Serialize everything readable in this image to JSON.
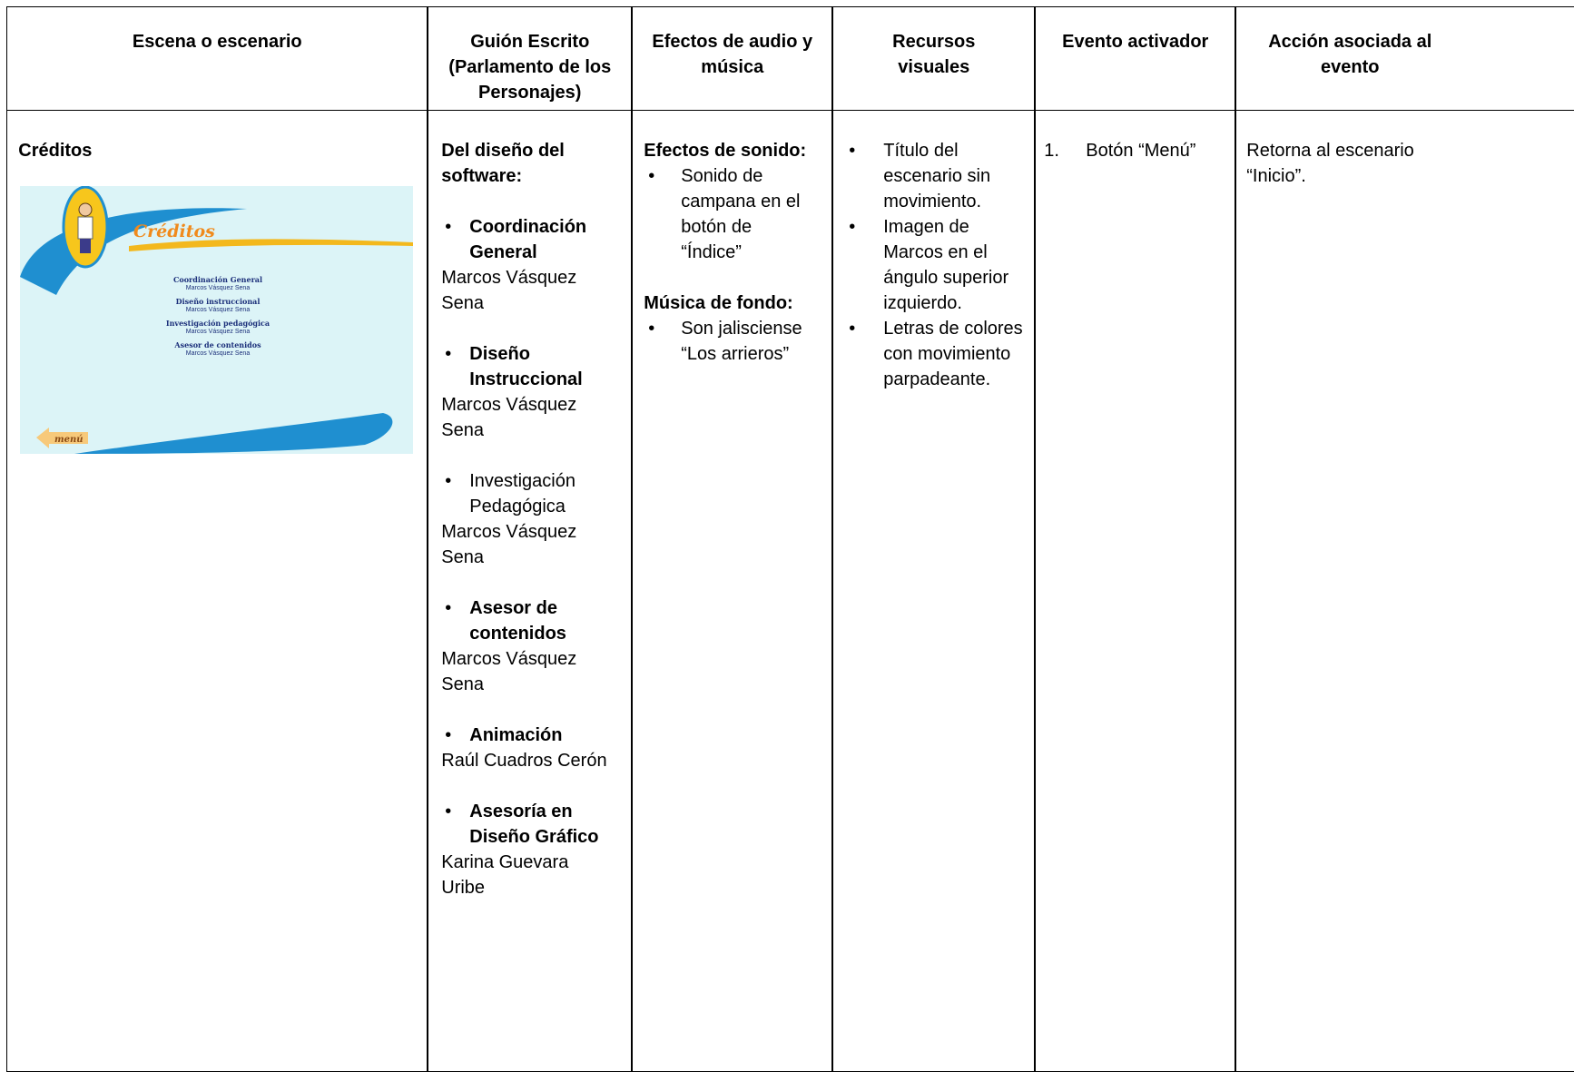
{
  "header": {
    "columns": [
      "Escena o escenario",
      "Guión Escrito (Parlamento de los Personajes)",
      "Efectos de audio y música",
      "Recursos visuales",
      "Evento activador",
      "Acción asociada al evento"
    ]
  },
  "row": {
    "scene": {
      "title": "Créditos",
      "thumbnail": {
        "title": "Créditos",
        "entries": [
          {
            "role": "Coordinación General",
            "name": "Marcos Vásquez Sena"
          },
          {
            "role": "Diseño instruccional",
            "name": "Marcos Vásquez Sena"
          },
          {
            "role": "Investigación pedagógica",
            "name": "Marcos Vásquez Sena"
          },
          {
            "role": "Asesor de contenidos",
            "name": "Marcos Vásquez Sena"
          }
        ],
        "button": "menú"
      }
    },
    "script": {
      "title": "Del diseño del software:",
      "items": [
        {
          "role": "Coordinación General",
          "bold": true,
          "name": "Marcos Vásquez Sena"
        },
        {
          "role": "Diseño Instruccional",
          "bold": true,
          "name": "Marcos Vásquez Sena"
        },
        {
          "role": "Investigación Pedagógica",
          "bold": false,
          "name": "Marcos Vásquez Sena"
        },
        {
          "role": "Asesor de contenidos",
          "bold": true,
          "name": "Marcos Vásquez Sena"
        },
        {
          "role": "Animación",
          "bold": true,
          "name": "Raúl Cuadros Cerón"
        },
        {
          "role": "Asesoría en Diseño Gráfico",
          "bold": true,
          "name": "Karina Guevara Uribe"
        }
      ]
    },
    "audio": {
      "sections": [
        {
          "title": "Efectos de sonido:",
          "items": [
            "Sonido de campana en el botón de “Índice”"
          ]
        },
        {
          "title": "Música de fondo:",
          "items": [
            "Son jalisciense “Los arrieros”"
          ]
        }
      ]
    },
    "visual": {
      "items": [
        "Título del escenario sin movimiento.",
        "Imagen de Marcos en el ángulo superior izquierdo.",
        "Letras de colores con movimiento parpadeante."
      ]
    },
    "event": {
      "number": "1.",
      "text": "Botón “Menú”"
    },
    "action": {
      "text": "Retorna al escenario “Inicio”."
    }
  }
}
